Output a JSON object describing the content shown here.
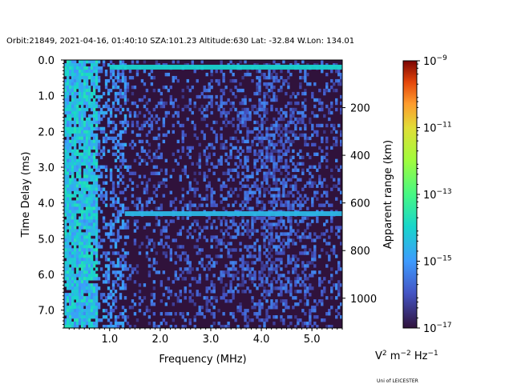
{
  "chart_data": {
    "type": "heatmap",
    "title": "Orbit:21849, 2021-04-16, 01:40:10 SZA:101.23 Altitude:630 Lat: -32.84 W.Lon: 134.01",
    "xlabel": "Frequency (MHz)",
    "ylabel": "Time Delay (ms)",
    "y2label": "Apparent range (km)",
    "xlim": [
      0.1,
      5.6
    ],
    "ylim": [
      7.5,
      0.0
    ],
    "x_ticks": [
      1.0,
      2.0,
      3.0,
      4.0,
      5.0
    ],
    "x_tick_labels": [
      "1.0",
      "2.0",
      "3.0",
      "4.0",
      "5.0"
    ],
    "y_ticks": [
      0.0,
      1.0,
      2.0,
      3.0,
      4.0,
      5.0,
      6.0,
      7.0
    ],
    "y_tick_labels": [
      "0.0",
      "1.0",
      "2.0",
      "3.0",
      "4.0",
      "5.0",
      "6.0",
      "7.0"
    ],
    "y2_ticks_km": [
      200,
      400,
      600,
      800,
      1000
    ],
    "y2_tick_labels": [
      "200",
      "400",
      "600",
      "800",
      "1000"
    ],
    "km_per_ms": 150,
    "colorbar": {
      "scale": "log",
      "min_exp": -17,
      "max_exp": -9,
      "tick_exps": [
        -17,
        -15,
        -13,
        -11,
        -9
      ],
      "tick_labels": [
        {
          "base": "10",
          "exp": "−17"
        },
        {
          "base": "10",
          "exp": "−15"
        },
        {
          "base": "10",
          "exp": "−13"
        },
        {
          "base": "10",
          "exp": "−11"
        },
        {
          "base": "10",
          "exp": "−9"
        }
      ],
      "colormap": "turbo"
    },
    "units": {
      "base1": "V",
      "exp1": "2",
      "mid": " m",
      "exp2": "−2",
      "end": " Hz",
      "exp3": "−1"
    },
    "features": [
      {
        "name": "ionospheric-echo-trace",
        "delay_ms": 0.2,
        "from_mhz": 1.0,
        "to_mhz": 5.6,
        "level_exp": -14
      },
      {
        "name": "surface-reflection-trace",
        "delay_ms": 4.3,
        "from_mhz": 1.3,
        "to_mhz": 5.6,
        "level_exp": -14.5
      }
    ],
    "credit": "Uni of LEICESTER"
  }
}
